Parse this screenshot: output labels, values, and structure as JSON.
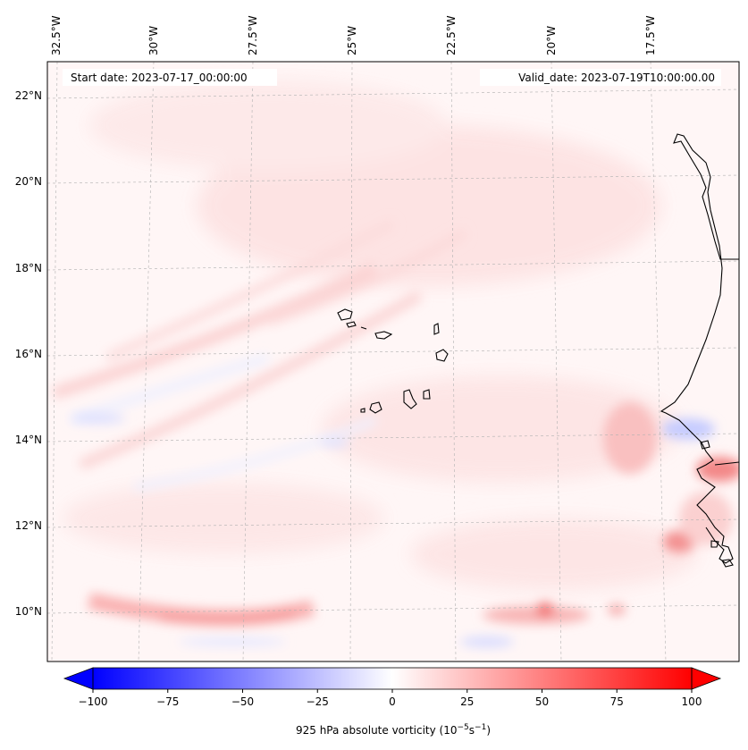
{
  "map": {
    "lon_labels": [
      "32.5°W",
      "30°W",
      "27.5°W",
      "25°W",
      "22.5°W",
      "20°W",
      "17.5°W"
    ],
    "lat_labels": [
      "22°N",
      "20°N",
      "18°N",
      "16°N",
      "14°N",
      "12°N",
      "10°N"
    ],
    "start_date": "Start date: 2023-07-17_00:00:00",
    "valid_date": "Valid_date: 2023-07-19T10:00:00.00",
    "extent": {
      "lon": [
        -32.6,
        -15.6
      ],
      "lat": [
        8.8,
        22.8
      ]
    }
  },
  "colorbar": {
    "ticks": [
      "−100",
      "−75",
      "−50",
      "−25",
      "0",
      "25",
      "50",
      "75",
      "100"
    ],
    "range": [
      -100,
      100
    ],
    "colormap": "bwr",
    "extend": "both",
    "label_prefix": "925 hPa absolute vorticity (10",
    "label_exp1": "−5",
    "label_mid": "s",
    "label_exp2": "−1",
    "label_suffix": ")"
  },
  "colors": {
    "negative": "#0000ff",
    "zero": "#ffffff",
    "positive": "#ff0000",
    "coastline": "#000000"
  }
}
